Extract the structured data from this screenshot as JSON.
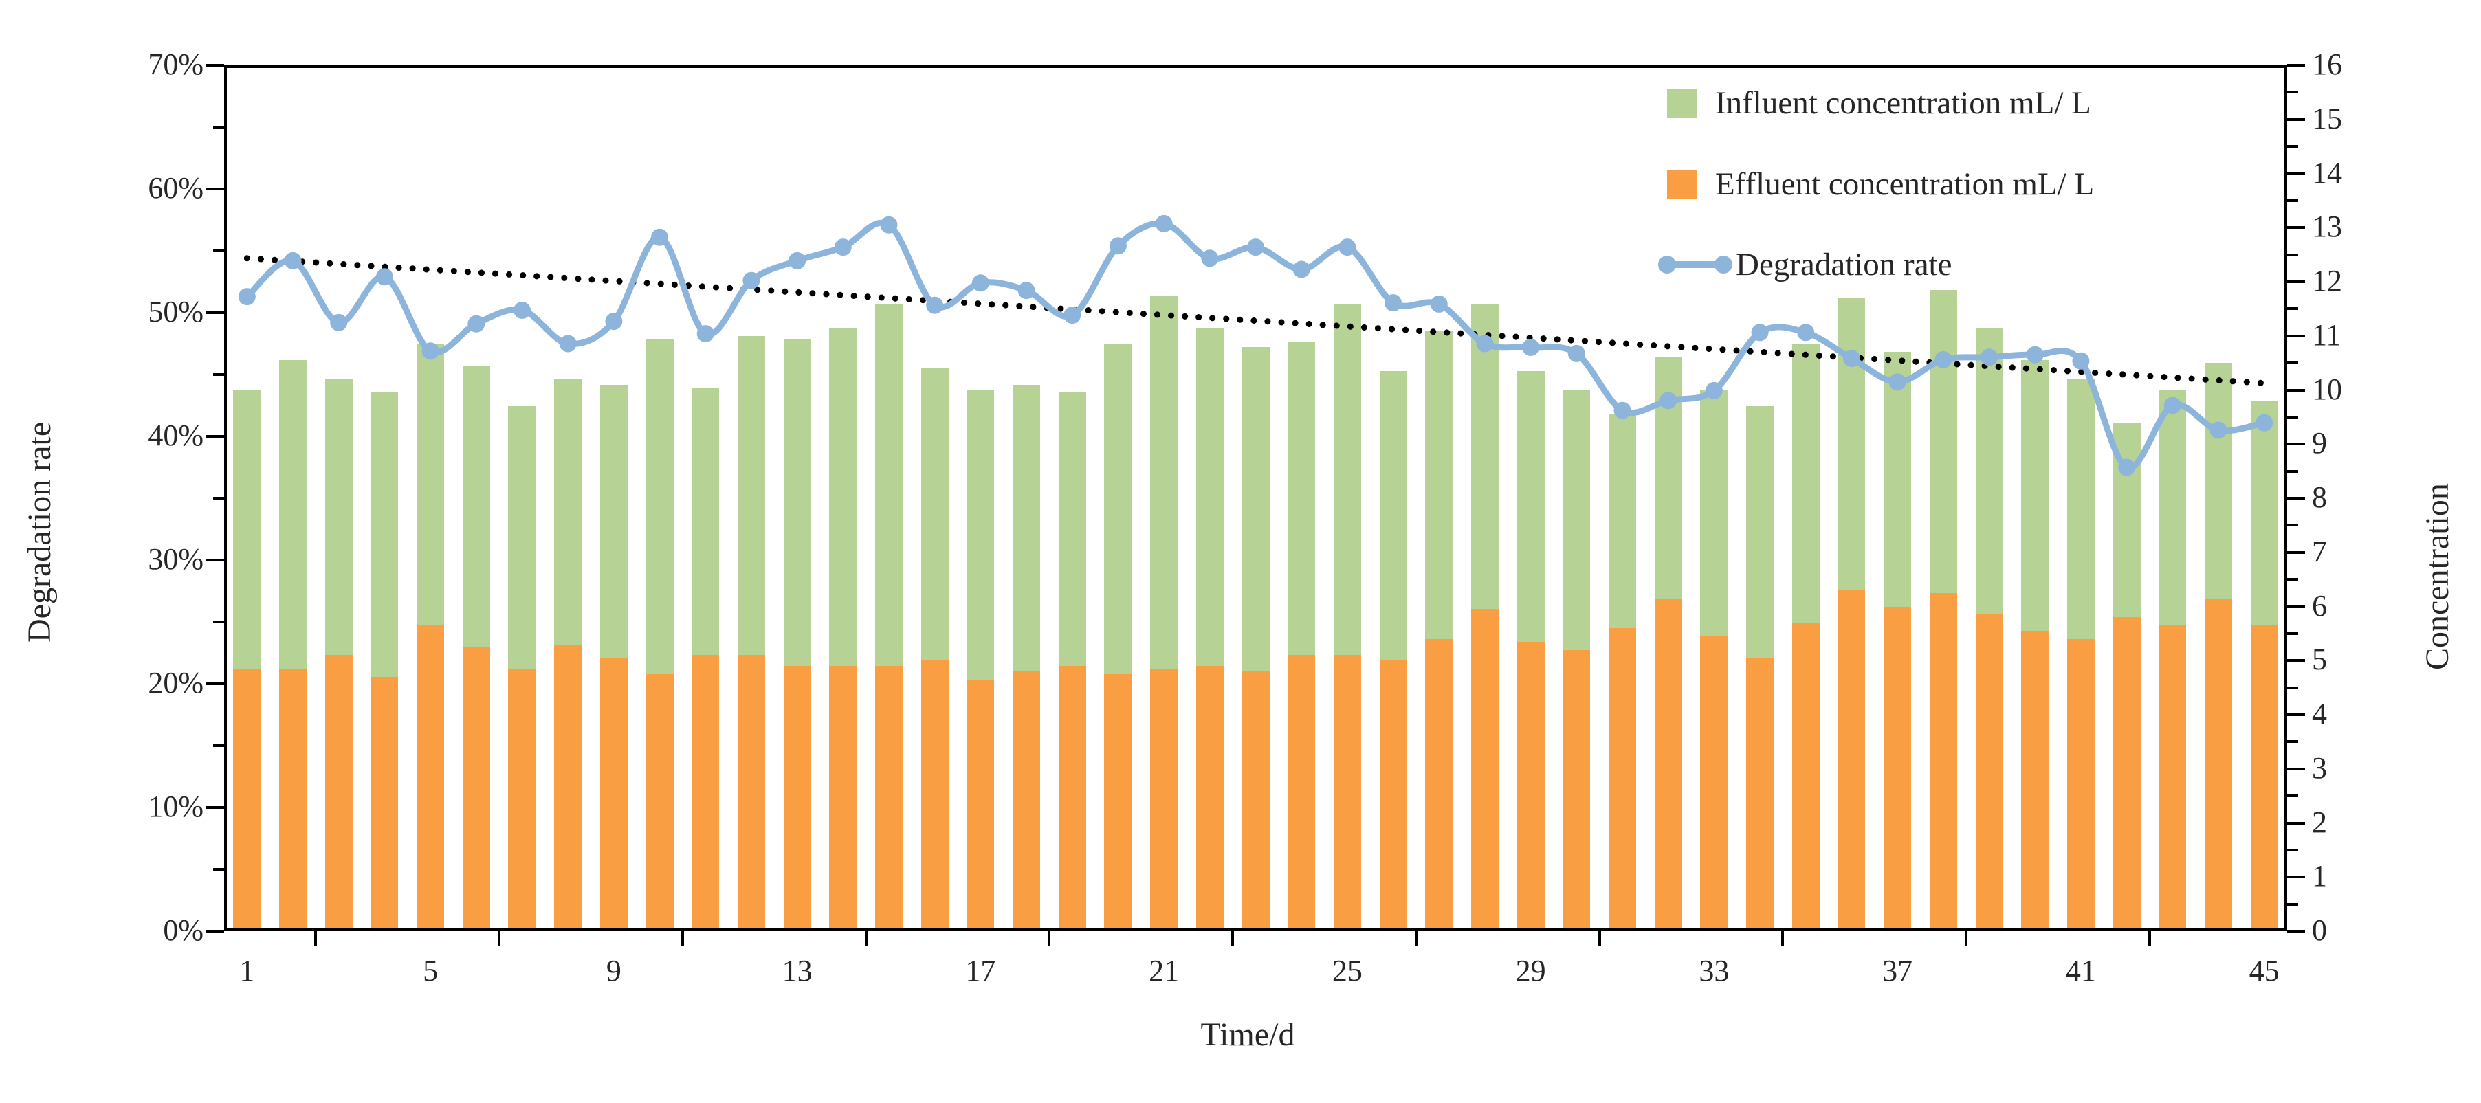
{
  "chart_data": {
    "type": "bar+line combo",
    "title": "",
    "xlabel": "Time/d",
    "ylabel_left": "Degradation rate",
    "ylabel_right": "Concentration",
    "grid": "off",
    "legend_position": "top-right inside plot",
    "categories_days": [
      1,
      2,
      3,
      4,
      5,
      6,
      7,
      8,
      9,
      10,
      11,
      12,
      13,
      14,
      15,
      16,
      17,
      18,
      19,
      20,
      21,
      22,
      23,
      24,
      25,
      26,
      27,
      28,
      29,
      30,
      31,
      32,
      33,
      34,
      35,
      36,
      37,
      38,
      39,
      40,
      41,
      42,
      43,
      44,
      45
    ],
    "x_axis": {
      "title": "Time/d",
      "tick_labels": [
        "1",
        "5",
        "9",
        "13",
        "17",
        "21",
        "25",
        "29",
        "33",
        "37",
        "41",
        "45"
      ],
      "label_every": 4
    },
    "left_axis": {
      "title": "Degradation rate",
      "min": 0,
      "max": 70,
      "unit": "%",
      "major_step": 10,
      "minor_step": 5,
      "tick_labels": [
        "0%",
        "10%",
        "20%",
        "30%",
        "40%",
        "50%",
        "60%",
        "70%"
      ]
    },
    "right_axis": {
      "title": "Concentration",
      "min": 0,
      "max": 16,
      "major_step": 1,
      "minor_step": 0.5,
      "tick_labels": [
        "0",
        "1",
        "2",
        "3",
        "4",
        "5",
        "6",
        "7",
        "8",
        "9",
        "10",
        "11",
        "12",
        "13",
        "14",
        "15",
        "16"
      ]
    },
    "series": [
      {
        "name": "Influent concentration mL/ L",
        "type": "bar",
        "axis": "right",
        "color": "#b6d295",
        "values": [
          10.0,
          10.55,
          10.2,
          9.95,
          10.85,
          10.45,
          9.7,
          10.2,
          10.1,
          10.95,
          10.05,
          11.0,
          10.95,
          11.15,
          11.6,
          10.4,
          10.0,
          10.1,
          9.95,
          10.85,
          11.75,
          11.15,
          10.8,
          10.9,
          11.6,
          10.35,
          11.1,
          11.6,
          10.35,
          10.0,
          9.55,
          10.6,
          10.0,
          9.7,
          10.85,
          11.7,
          10.7,
          11.85,
          11.15,
          10.55,
          10.2,
          9.4,
          10.0,
          10.5,
          9.8
        ]
      },
      {
        "name": "Effluent concentration mL/ L",
        "type": "bar",
        "axis": "right",
        "color": "#fa9e44",
        "values": [
          4.85,
          4.85,
          5.1,
          4.7,
          5.65,
          5.25,
          4.85,
          5.3,
          5.05,
          4.75,
          5.1,
          5.1,
          4.9,
          4.9,
          4.9,
          5.0,
          4.65,
          4.8,
          4.9,
          4.75,
          4.85,
          4.9,
          4.8,
          5.1,
          5.1,
          5.0,
          5.4,
          5.95,
          5.35,
          5.2,
          5.6,
          6.15,
          5.45,
          5.05,
          5.7,
          6.3,
          6.0,
          6.25,
          5.85,
          5.55,
          5.4,
          5.8,
          5.65,
          6.15,
          5.65
        ]
      },
      {
        "name": "Degradation rate",
        "type": "line",
        "axis": "left",
        "color": "#8db4db",
        "marker": "circle",
        "values_percent": [
          51.3,
          54.2,
          49.2,
          52.9,
          46.9,
          49.1,
          50.2,
          47.5,
          49.3,
          56.1,
          48.3,
          52.6,
          54.2,
          55.3,
          57.1,
          50.6,
          52.4,
          51.8,
          49.8,
          55.4,
          57.2,
          54.4,
          55.3,
          53.5,
          55.3,
          50.8,
          50.7,
          47.5,
          47.2,
          46.7,
          42.1,
          42.9,
          43.7,
          48.4,
          48.4,
          46.3,
          44.4,
          46.2,
          46.4,
          46.6,
          46.1,
          37.5,
          42.5,
          40.5,
          41.1
        ]
      }
    ],
    "trendline": {
      "applies_to": "Degradation rate",
      "style": "dotted",
      "color": "#000000",
      "start_percent_day1": 54.4,
      "end_percent_day45": 44.3
    },
    "legend": {
      "items": [
        {
          "label": "Influent concentration mL/ L",
          "marker": "square",
          "color": "#b6d295"
        },
        {
          "label": "Effluent concentration mL/ L",
          "marker": "square",
          "color": "#fa9e44"
        },
        {
          "label": "Degradation rate",
          "marker": "line-with-dots",
          "color": "#8db4db"
        }
      ]
    },
    "colors": {
      "influent": "#b6d295",
      "effluent": "#fa9e44",
      "line": "#8db4db",
      "trendline": "#000000",
      "axis": "#000000",
      "text": "#262626"
    }
  }
}
